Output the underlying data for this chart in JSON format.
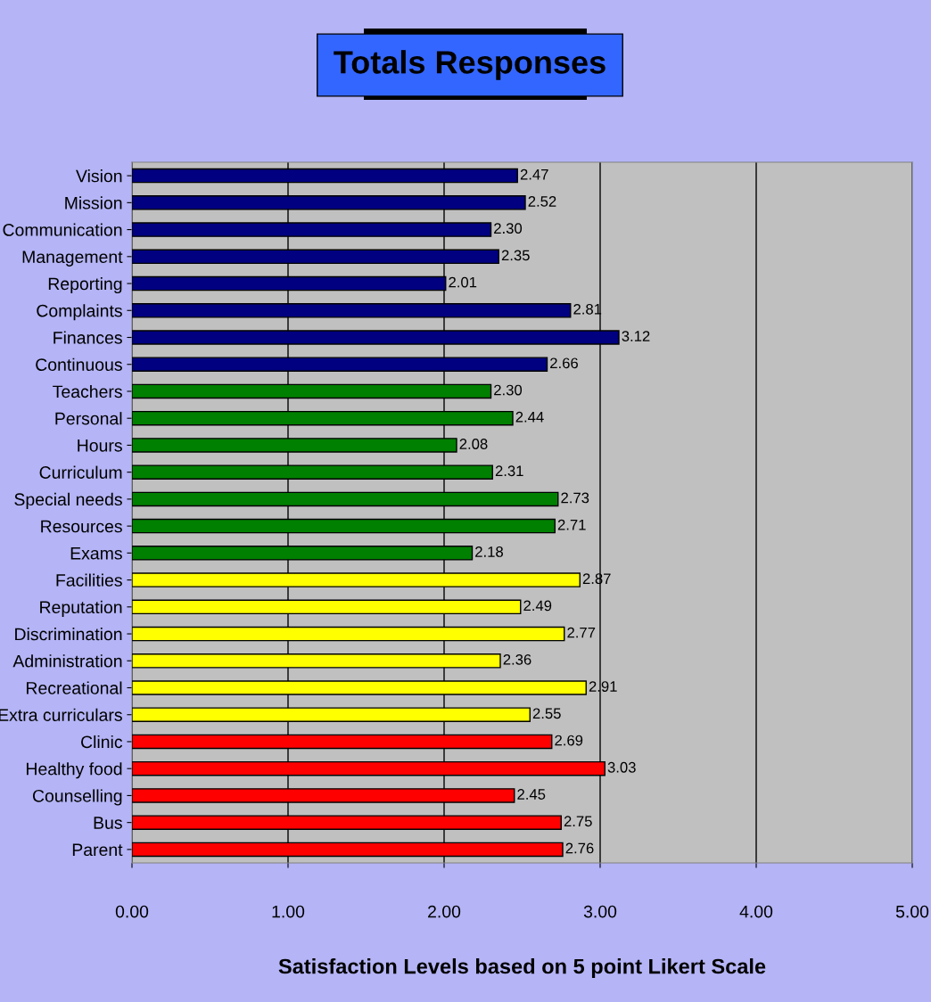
{
  "chart_data": {
    "type": "bar",
    "orientation": "horizontal",
    "title": "Totals Responses",
    "xlabel": "Satisfaction Levels based on 5 point Likert Scale",
    "categories": [
      "Vision",
      "Mission",
      "Communication",
      "Management",
      "Reporting",
      "Complaints",
      "Finances",
      "Continuous",
      "Teachers",
      "Personal",
      "Hours",
      "Curriculum",
      "Special needs",
      "Resources",
      "Exams",
      "Facilities",
      "Reputation",
      "Discrimination",
      "Administration",
      "Recreational",
      "Extra curriculars",
      "Clinic",
      "Healthy food",
      "Counselling",
      "Bus",
      "Parent"
    ],
    "values": [
      2.47,
      2.52,
      2.3,
      2.35,
      2.01,
      2.81,
      3.12,
      2.66,
      2.3,
      2.44,
      2.08,
      2.31,
      2.73,
      2.71,
      2.18,
      2.87,
      2.49,
      2.77,
      2.36,
      2.91,
      2.55,
      2.69,
      3.03,
      2.45,
      2.75,
      2.76
    ],
    "value_labels": [
      "2.47",
      "2.52",
      "2.30",
      "2.35",
      "2.01",
      "2.81",
      "3.12",
      "2.66",
      "2.30",
      "2.44",
      "2.08",
      "2.31",
      "2.73",
      "2.71",
      "2.18",
      "2.87",
      "2.49",
      "2.77",
      "2.36",
      "2.91",
      "2.55",
      "2.69",
      "3.03",
      "2.45",
      "2.75",
      "2.76"
    ],
    "colors": [
      "#000080",
      "#000080",
      "#000080",
      "#000080",
      "#000080",
      "#000080",
      "#000080",
      "#000080",
      "#008000",
      "#008000",
      "#008000",
      "#008000",
      "#008000",
      "#008000",
      "#008000",
      "#ffff00",
      "#ffff00",
      "#ffff00",
      "#ffff00",
      "#ffff00",
      "#ffff00",
      "#ff0000",
      "#ff0000",
      "#ff0000",
      "#ff0000",
      "#ff0000"
    ],
    "xlim": [
      0,
      5
    ],
    "xticks": [
      {
        "value": 0,
        "label": "0.00"
      },
      {
        "value": 1,
        "label": "1.00"
      },
      {
        "value": 2,
        "label": "2.00"
      },
      {
        "value": 3,
        "label": "3.00"
      },
      {
        "value": 4,
        "label": "4.00"
      },
      {
        "value": 5,
        "label": "5.00"
      }
    ],
    "grid": "x",
    "legend": false
  }
}
